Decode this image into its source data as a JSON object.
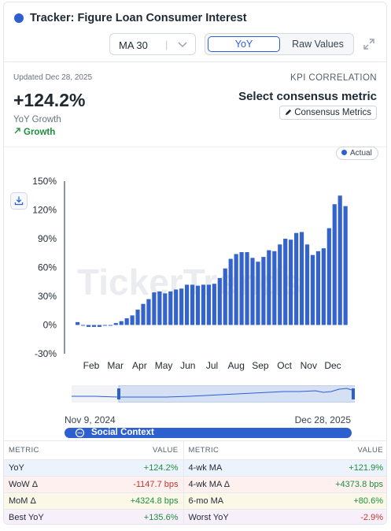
{
  "header": {
    "title": "Tracker: Figure Loan Consumer Interest",
    "ma_select": "MA 30",
    "modes": [
      "YoY",
      "Raw Values"
    ],
    "active_mode": "YoY"
  },
  "kpi": {
    "updated": "Updated Dec 28, 2025",
    "value": "+124.2%",
    "label": "YoY Growth",
    "trend": "Growth",
    "correlation_title": "KPI CORRELATION",
    "consensus_title": "Select consensus metric",
    "consensus_button": "Consensus Metrics"
  },
  "legend": {
    "label": "Actual"
  },
  "watermark": "TickerTrends",
  "colors": {
    "accent": "#2d5fcf",
    "bar": "#3563cc",
    "positive": "#1e8e3e",
    "negative": "#c0392b"
  },
  "chart_data": {
    "type": "bar",
    "series": [
      {
        "name": "Actual",
        "values": [
          3,
          0,
          -2,
          -2,
          -2,
          0,
          0,
          2,
          4,
          7,
          10,
          16,
          22,
          27,
          34,
          35,
          33,
          35,
          37,
          38,
          42,
          42,
          41,
          42,
          42,
          43,
          49,
          59,
          69,
          74,
          76,
          76,
          70,
          66,
          71,
          78,
          77,
          84,
          90,
          89,
          96,
          97,
          84,
          73,
          77,
          80,
          101,
          126,
          135,
          124
        ]
      }
    ],
    "x_labels": [
      "Feb",
      "Mar",
      "Apr",
      "May",
      "Jun",
      "Jul",
      "Aug",
      "Sep",
      "Oct",
      "Nov",
      "Dec"
    ],
    "y_ticks": [
      "150%",
      "120%",
      "90%",
      "60%",
      "30%",
      "0%",
      "-30%"
    ],
    "ylim": [
      -30,
      150
    ],
    "grid": false,
    "legend": "top-right"
  },
  "navigator": {
    "start": "Nov 9, 2024",
    "end": "Dec 28, 2025"
  },
  "social": {
    "label": "Social Context"
  },
  "metrics": {
    "headers": [
      "METRIC",
      "VALUE",
      "METRIC",
      "VALUE"
    ],
    "rows": [
      {
        "m1": "YoY",
        "v1": "+124.2%",
        "s1": "pos",
        "m2": "4-wk MA",
        "v2": "+121.9%",
        "s2": "pos"
      },
      {
        "m1": "WoW Δ",
        "v1": "-1147.7 bps",
        "s1": "neg",
        "m2": "4-wk MA Δ",
        "v2": "+4373.8 bps",
        "s2": "pos"
      },
      {
        "m1": "MoM Δ",
        "v1": "+4324.8 bps",
        "s1": "pos",
        "m2": "6-mo MA",
        "v2": "+80.6%",
        "s2": "pos"
      },
      {
        "m1": "Best YoY",
        "v1": "+135.6%",
        "s1": "pos",
        "m2": "Worst YoY",
        "v2": "-2.9%",
        "s2": "neg"
      }
    ]
  }
}
